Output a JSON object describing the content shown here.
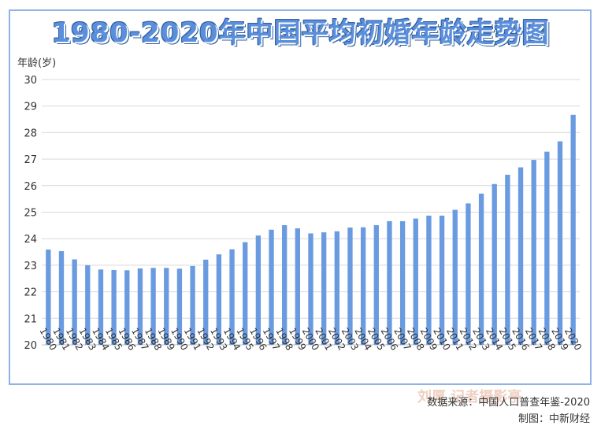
{
  "chart_data": {
    "type": "bar",
    "title": "1980-2020年中国平均初婚年龄走势图",
    "ylabel": "年龄(岁)",
    "xlabel": "",
    "ylim": [
      20,
      30
    ],
    "yticks": [
      20,
      21,
      22,
      23,
      24,
      25,
      26,
      27,
      28,
      29,
      30
    ],
    "grid": true,
    "bar_color": "#6a9be0",
    "categories": [
      "1980",
      "1981",
      "1982",
      "1983",
      "1984",
      "1985",
      "1986",
      "1987",
      "1988",
      "1989",
      "1990",
      "1991",
      "1992",
      "1993",
      "1994",
      "1995",
      "1996",
      "1997",
      "1998",
      "1999",
      "2000",
      "2001",
      "2002",
      "2003",
      "2004",
      "2005",
      "2006",
      "2007",
      "2008",
      "2009",
      "2010",
      "2011",
      "2012",
      "2013",
      "2014",
      "2015",
      "2016",
      "2017",
      "2018",
      "2019",
      "2020"
    ],
    "values": [
      23.59,
      23.53,
      23.22,
      23.0,
      22.84,
      22.82,
      22.81,
      22.88,
      22.9,
      22.9,
      22.87,
      22.97,
      23.21,
      23.41,
      23.6,
      23.87,
      24.12,
      24.34,
      24.51,
      24.39,
      24.2,
      24.24,
      24.28,
      24.42,
      24.43,
      24.51,
      24.66,
      24.66,
      24.76,
      24.87,
      24.87,
      25.09,
      25.33,
      25.7,
      26.06,
      26.41,
      26.69,
      26.97,
      27.28,
      27.67,
      28.67
    ]
  },
  "source_text": "数据来源：中国人口普查年鉴-2020",
  "credit_text": "制图：中新财经",
  "watermark_text": "刘厚 记者摄影亭"
}
